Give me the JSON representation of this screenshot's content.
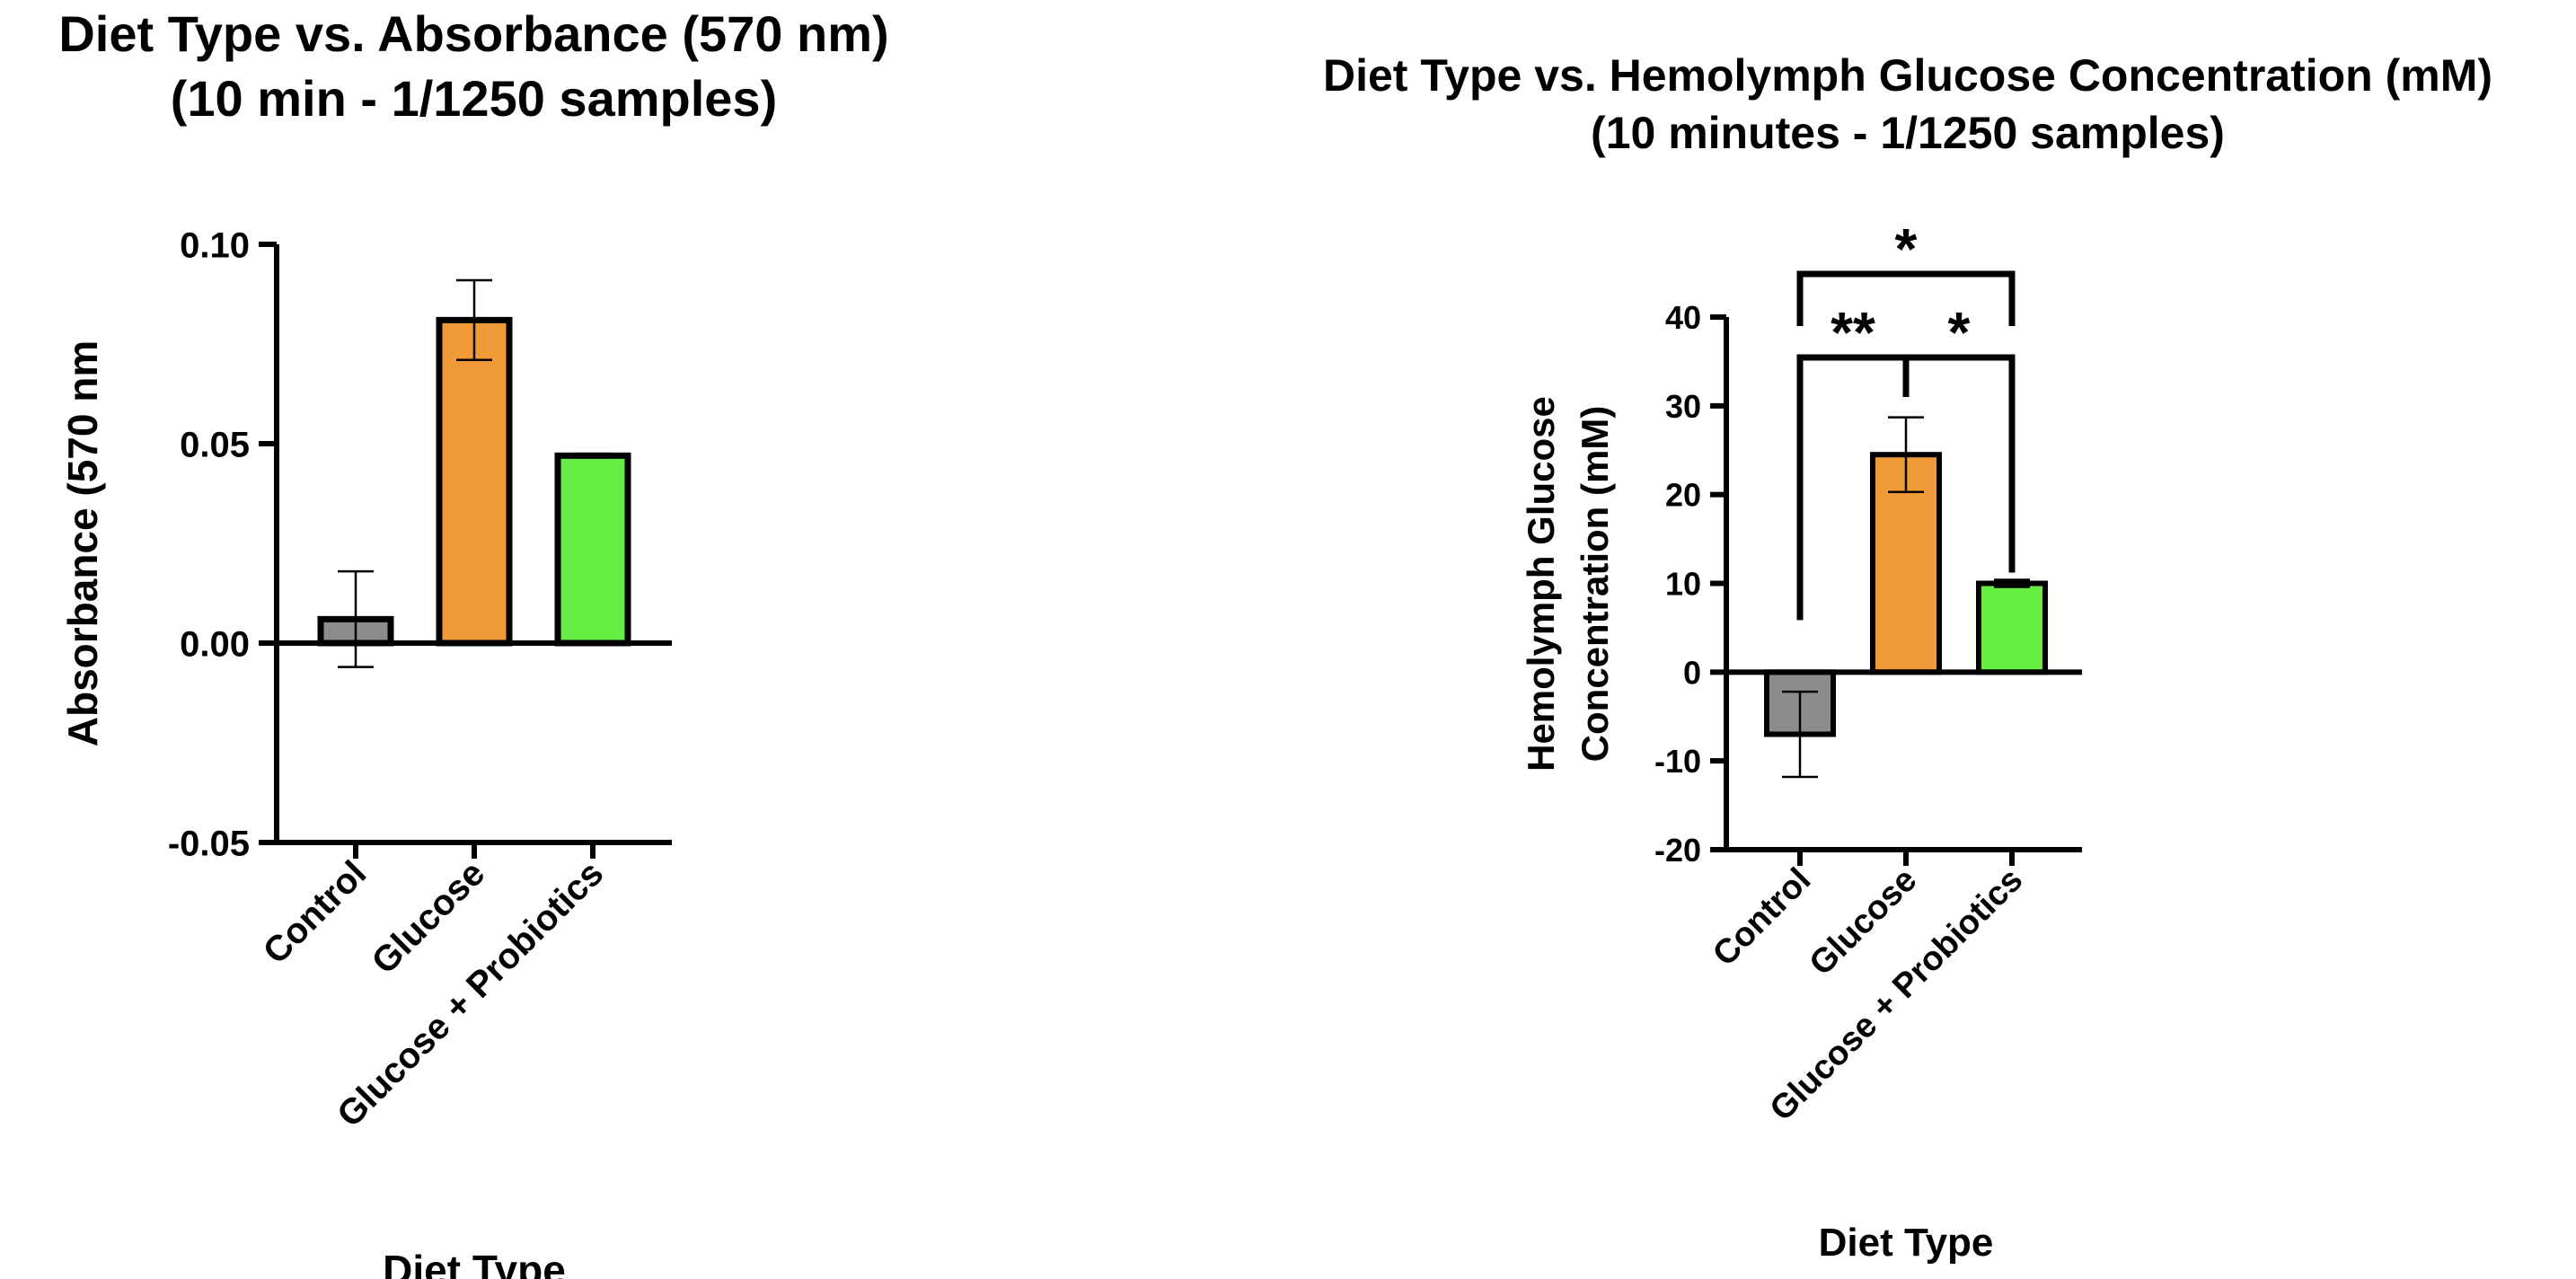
{
  "chart_data": [
    {
      "type": "bar",
      "title": "Diet Type vs. Absorbance (570 nm)",
      "subtitle": "(10 min - 1/1250 samples)",
      "xlabel": "Diet Type",
      "ylabel": "Absorbance (570 nm",
      "categories": [
        "Control",
        "Glucose",
        "Glucose + Probiotics"
      ],
      "values": [
        0.006,
        0.081,
        0.047
      ],
      "errors": [
        0.012,
        0.01,
        0.0005
      ],
      "colors": [
        "#8c8c8c",
        "#f09a38",
        "#66ee44"
      ],
      "ylim": [
        -0.05,
        0.1
      ],
      "yticks": [
        -0.05,
        0.0,
        0.05,
        0.1
      ],
      "ytick_labels": [
        "-0.05",
        "0.00",
        "0.05",
        "0.10"
      ],
      "grid": false,
      "significance": []
    },
    {
      "type": "bar",
      "title": "Diet Type vs. Hemolymph Glucose Concentration (mM)",
      "subtitle": "(10 minutes - 1/1250 samples)",
      "xlabel": "Diet Type",
      "ylabel": "Hemolymph Glucose Concentration (mM)",
      "ylabel_lines": [
        "Hemolymph Glucose",
        "Concentration (mM)"
      ],
      "categories": [
        "Control",
        "Glucose",
        "Glucose + Probiotics"
      ],
      "values": [
        -7,
        24.5,
        10
      ],
      "errors": [
        4.8,
        4.2,
        0.4
      ],
      "colors": [
        "#8c8c8c",
        "#f09a38",
        "#66ee44"
      ],
      "ylim": [
        -20,
        40
      ],
      "yticks": [
        -20,
        -10,
        0,
        10,
        20,
        30,
        40
      ],
      "ytick_labels": [
        "-20",
        "-10",
        "0",
        "10",
        "20",
        "30",
        "40"
      ],
      "grid": false,
      "significance": [
        {
          "from": 0,
          "to": 2,
          "label": "*",
          "level": 2
        },
        {
          "from": 0,
          "to": 1,
          "label": "**",
          "level": 1
        },
        {
          "from": 1,
          "to": 2,
          "label": "*",
          "level": 1
        }
      ]
    }
  ]
}
